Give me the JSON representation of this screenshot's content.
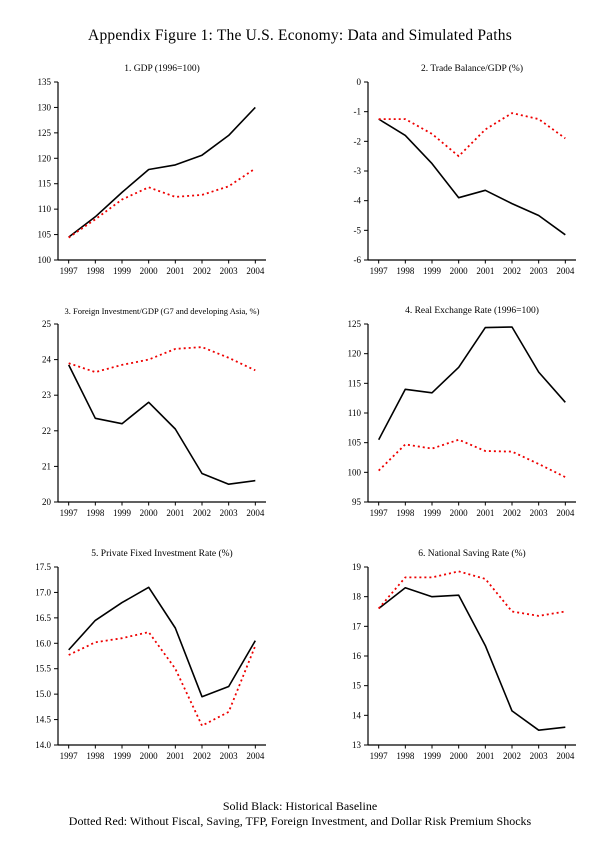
{
  "page_title": "Appendix Figure 1: The U.S. Economy: Data and Simulated Paths",
  "colors": {
    "baseline": "#000000",
    "counterfactual": "#ee0000"
  },
  "legend": {
    "line1": "Solid Black: Historical Baseline",
    "line2": "Dotted Red: Without Fiscal, Saving, TFP, Foreign Investment, and Dollar Risk Premium Shocks"
  },
  "chart_data": [
    {
      "type": "line",
      "title": "1. GDP (1996=100)",
      "x": [
        1997,
        1998,
        1999,
        2000,
        2001,
        2002,
        2003,
        2004
      ],
      "xlim": [
        1996.6,
        2004.4
      ],
      "ylim": [
        100,
        135
      ],
      "yticks": [
        100,
        105,
        110,
        115,
        120,
        125,
        130,
        135
      ],
      "ytick_labels": [
        "100",
        "105",
        "110",
        "115",
        "120",
        "125",
        "130",
        "135"
      ],
      "grid": false,
      "series": [
        {
          "name": "Historical Baseline",
          "style": "solid",
          "color": "#000000",
          "values": [
            104.5,
            108.5,
            113.3,
            117.8,
            118.7,
            120.6,
            124.5,
            130.0
          ]
        },
        {
          "name": "Without Fiscal, Saving, TFP, Foreign Investment, and Dollar Risk Premium Shocks",
          "style": "dotted",
          "color": "#ee0000",
          "values": [
            104.4,
            108.0,
            111.9,
            114.3,
            112.4,
            112.8,
            114.5,
            118.0
          ]
        }
      ]
    },
    {
      "type": "line",
      "title": "2. Trade Balance/GDP (%)",
      "x": [
        1997,
        1998,
        1999,
        2000,
        2001,
        2002,
        2003,
        2004
      ],
      "xlim": [
        1996.6,
        2004.4
      ],
      "ylim": [
        -6,
        0
      ],
      "yticks": [
        -6,
        -5,
        -4,
        -3,
        -2,
        -1,
        0
      ],
      "ytick_labels": [
        "-6",
        "-5",
        "-4",
        "-3",
        "-2",
        "-1",
        "0"
      ],
      "grid": false,
      "series": [
        {
          "name": "Historical Baseline",
          "style": "solid",
          "color": "#000000",
          "values": [
            -1.25,
            -1.8,
            -2.75,
            -3.9,
            -3.65,
            -4.1,
            -4.5,
            -5.15
          ]
        },
        {
          "name": "Without Fiscal, Saving, TFP, Foreign Investment, and Dollar Risk Premium Shocks",
          "style": "dotted",
          "color": "#ee0000",
          "values": [
            -1.25,
            -1.25,
            -1.75,
            -2.5,
            -1.6,
            -1.05,
            -1.25,
            -1.9
          ]
        }
      ]
    },
    {
      "type": "line",
      "title": "3. Foreign Investment/GDP (G7 and developing Asia, %)",
      "x": [
        1997,
        1998,
        1999,
        2000,
        2001,
        2002,
        2003,
        2004
      ],
      "xlim": [
        1996.6,
        2004.4
      ],
      "ylim": [
        20,
        25
      ],
      "yticks": [
        20,
        21,
        22,
        23,
        24,
        25
      ],
      "ytick_labels": [
        "20",
        "21",
        "22",
        "23",
        "24",
        "25"
      ],
      "grid": false,
      "series": [
        {
          "name": "Historical Baseline",
          "style": "solid",
          "color": "#000000",
          "values": [
            23.85,
            22.35,
            22.2,
            22.8,
            22.05,
            20.8,
            20.5,
            20.6
          ]
        },
        {
          "name": "Without Fiscal, Saving, TFP, Foreign Investment, and Dollar Risk Premium Shocks",
          "style": "dotted",
          "color": "#ee0000",
          "values": [
            23.9,
            23.65,
            23.85,
            24.0,
            24.3,
            24.35,
            24.05,
            23.7
          ]
        }
      ]
    },
    {
      "type": "line",
      "title": "4. Real Exchange Rate (1996=100)",
      "x": [
        1997,
        1998,
        1999,
        2000,
        2001,
        2002,
        2003,
        2004
      ],
      "xlim": [
        1996.6,
        2004.4
      ],
      "ylim": [
        95,
        125
      ],
      "yticks": [
        95,
        100,
        105,
        110,
        115,
        120,
        125
      ],
      "ytick_labels": [
        "95",
        "100",
        "105",
        "110",
        "115",
        "120",
        "125"
      ],
      "grid": false,
      "series": [
        {
          "name": "Historical Baseline",
          "style": "solid",
          "color": "#000000",
          "values": [
            105.5,
            114.0,
            113.4,
            117.7,
            124.4,
            124.5,
            116.9,
            111.8
          ]
        },
        {
          "name": "Without Fiscal, Saving, TFP, Foreign Investment, and Dollar Risk Premium Shocks",
          "style": "dotted",
          "color": "#ee0000",
          "values": [
            100.3,
            104.7,
            104.0,
            105.5,
            103.6,
            103.5,
            101.4,
            99.2
          ]
        }
      ]
    },
    {
      "type": "line",
      "title": "5. Private Fixed Investment Rate (%)",
      "x": [
        1997,
        1998,
        1999,
        2000,
        2001,
        2002,
        2003,
        2004
      ],
      "xlim": [
        1996.6,
        2004.4
      ],
      "ylim": [
        14.0,
        17.5
      ],
      "yticks": [
        14.0,
        14.5,
        15.0,
        15.5,
        16.0,
        16.5,
        17.0,
        17.5
      ],
      "ytick_labels": [
        "14.0",
        "14.5",
        "15.0",
        "15.5",
        "16.0",
        "16.5",
        "17.0",
        "17.5"
      ],
      "grid": false,
      "series": [
        {
          "name": "Historical Baseline",
          "style": "solid",
          "color": "#000000",
          "values": [
            15.87,
            16.45,
            16.8,
            17.1,
            16.3,
            14.95,
            15.15,
            16.05
          ]
        },
        {
          "name": "Without Fiscal, Saving, TFP, Foreign Investment, and Dollar Risk Premium Shocks",
          "style": "dotted",
          "color": "#ee0000",
          "values": [
            15.77,
            16.02,
            16.1,
            16.22,
            15.5,
            14.38,
            14.65,
            15.95
          ]
        }
      ]
    },
    {
      "type": "line",
      "title": "6. National Saving Rate (%)",
      "x": [
        1997,
        1998,
        1999,
        2000,
        2001,
        2002,
        2003,
        2004
      ],
      "xlim": [
        1996.6,
        2004.4
      ],
      "ylim": [
        13,
        19
      ],
      "yticks": [
        13,
        14,
        15,
        16,
        17,
        18,
        19
      ],
      "ytick_labels": [
        "13",
        "14",
        "15",
        "16",
        "17",
        "18",
        "19"
      ],
      "grid": false,
      "series": [
        {
          "name": "Historical Baseline",
          "style": "solid",
          "color": "#000000",
          "values": [
            17.6,
            18.3,
            18.0,
            18.05,
            16.35,
            14.15,
            13.5,
            13.6
          ]
        },
        {
          "name": "Without Fiscal, Saving, TFP, Foreign Investment, and Dollar Risk Premium Shocks",
          "style": "dotted",
          "color": "#ee0000",
          "values": [
            17.6,
            18.65,
            18.65,
            18.85,
            18.6,
            17.5,
            17.35,
            17.5
          ]
        }
      ]
    }
  ]
}
